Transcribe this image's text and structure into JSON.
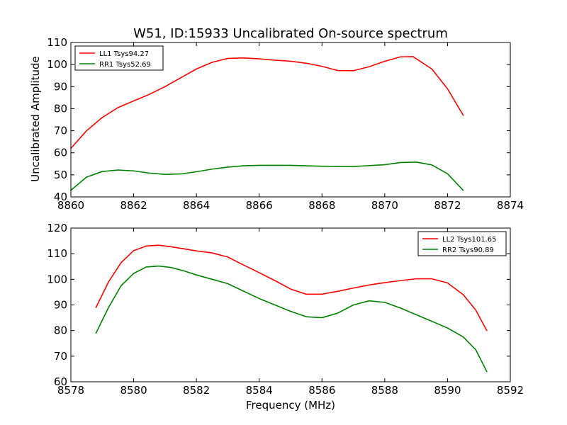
{
  "chart_data": [
    {
      "type": "line",
      "title": "W51, ID:15933 Uncalibrated On-source spectrum",
      "xlabel": "",
      "ylabel": "Uncalibrated Amplitude",
      "xlim": [
        8860,
        8874
      ],
      "ylim": [
        40,
        110
      ],
      "xticks": [
        "8860",
        "8862",
        "8864",
        "8866",
        "8868",
        "8870",
        "8872",
        "8874"
      ],
      "yticks": [
        "40",
        "50",
        "60",
        "70",
        "80",
        "90",
        "100",
        "110"
      ],
      "legend_position": "top-left",
      "series": [
        {
          "name": "LL1 Tsys94.27",
          "color": "#ff0000",
          "x": [
            8860.0,
            8860.5,
            8861.0,
            8861.5,
            8862.0,
            8862.5,
            8863.0,
            8863.5,
            8864.0,
            8864.5,
            8865.0,
            8865.5,
            8866.0,
            8866.5,
            8867.0,
            8867.5,
            8868.0,
            8868.5,
            8869.0,
            8869.5,
            8870.0,
            8870.5,
            8870.9,
            8871.5,
            8872.0,
            8872.5
          ],
          "y": [
            62,
            70,
            76,
            80.5,
            83.5,
            86.5,
            90,
            94,
            98,
            101,
            102.8,
            103,
            102.6,
            102,
            101.5,
            100.6,
            99.2,
            97.3,
            97.2,
            99,
            101.5,
            103.5,
            103.6,
            98,
            89,
            77
          ]
        },
        {
          "name": "RR1 Tsys52.69",
          "color": "#008000",
          "x": [
            8860.0,
            8860.5,
            8861.0,
            8861.5,
            8862.0,
            8862.5,
            8863.0,
            8863.5,
            8864.0,
            8864.5,
            8865.0,
            8865.5,
            8866.0,
            8867.0,
            8868.0,
            8869.0,
            8870.0,
            8870.5,
            8871.0,
            8871.5,
            8872.0,
            8872.5
          ],
          "y": [
            43,
            49,
            51.5,
            52.2,
            51.8,
            50.8,
            50.2,
            50.4,
            51.4,
            52.6,
            53.5,
            54.1,
            54.3,
            54.3,
            53.9,
            53.8,
            54.6,
            55.6,
            55.8,
            54.5,
            50.5,
            43
          ]
        }
      ]
    },
    {
      "type": "line",
      "title": "",
      "xlabel": "Frequency (MHz)",
      "ylabel": "",
      "xlim": [
        8578,
        8592
      ],
      "ylim": [
        60,
        120
      ],
      "xticks": [
        "8578",
        "8580",
        "8582",
        "8584",
        "8586",
        "8588",
        "8590",
        "8592"
      ],
      "yticks": [
        "60",
        "70",
        "80",
        "90",
        "100",
        "110",
        "120"
      ],
      "legend_position": "top-right",
      "series": [
        {
          "name": "LL2 Tsys101.65",
          "color": "#ff0000",
          "x": [
            8578.8,
            8579.2,
            8579.6,
            8580.0,
            8580.4,
            8580.8,
            8581.2,
            8581.6,
            8582.0,
            8582.5,
            8583.0,
            8583.5,
            8584.0,
            8584.5,
            8585.0,
            8585.5,
            8586.0,
            8586.5,
            8587.0,
            8587.5,
            8588.0,
            8588.5,
            8589.0,
            8589.5,
            8590.0,
            8590.5,
            8590.9,
            8591.25
          ],
          "y": [
            89,
            99,
            106.5,
            111.2,
            113,
            113.3,
            112.7,
            111.9,
            111.1,
            110.3,
            108.7,
            105.6,
            102.6,
            99.5,
            96.2,
            94.2,
            94.2,
            95.3,
            96.6,
            97.8,
            98.7,
            99.5,
            100.2,
            100.2,
            98.6,
            94,
            88,
            80
          ]
        },
        {
          "name": "RR2 Tsys90.89",
          "color": "#008000",
          "x": [
            8578.8,
            8579.2,
            8579.6,
            8580.0,
            8580.4,
            8580.8,
            8581.2,
            8581.6,
            8582.0,
            8582.5,
            8583.0,
            8583.5,
            8584.0,
            8584.5,
            8585.0,
            8585.5,
            8586.0,
            8586.5,
            8587.0,
            8587.5,
            8588.0,
            8588.5,
            8589.0,
            8589.5,
            8590.0,
            8590.5,
            8590.9,
            8591.25
          ],
          "y": [
            79,
            89,
            97.5,
            102.3,
            104.8,
            105.2,
            104.6,
            103.3,
            101.7,
            100,
            98.3,
            95.4,
            92.5,
            90,
            87.5,
            85.4,
            85,
            86.8,
            90,
            91.6,
            91,
            88.8,
            86.2,
            83.6,
            81,
            77.5,
            72.5,
            64
          ]
        }
      ]
    }
  ]
}
